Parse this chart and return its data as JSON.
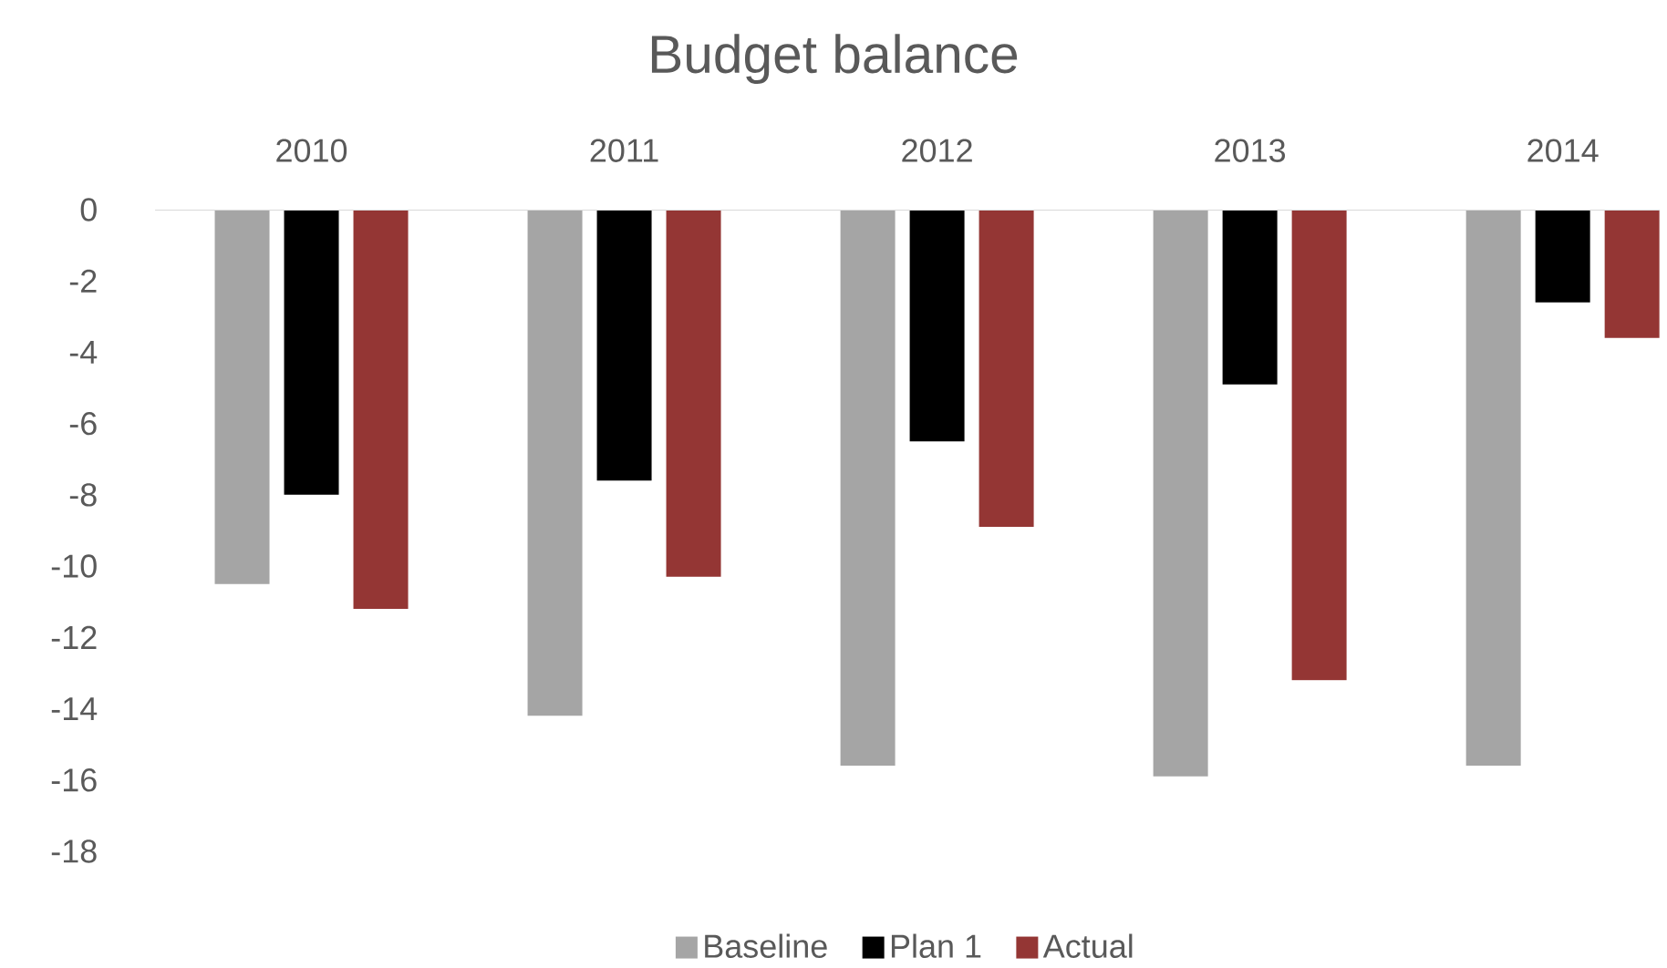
{
  "chart_data": {
    "type": "bar",
    "title": "Budget balance",
    "categories": [
      "2010",
      "2011",
      "2012",
      "2013",
      "2014"
    ],
    "series": [
      {
        "name": "Baseline",
        "color": "#a5a5a5",
        "values": [
          -10.5,
          -14.2,
          -15.6,
          -15.9,
          -15.6
        ]
      },
      {
        "name": "Plan 1",
        "color": "#000000",
        "values": [
          -8.0,
          -7.6,
          -6.5,
          -4.9,
          -2.6
        ]
      },
      {
        "name": "Actual",
        "color": "#943634",
        "values": [
          -11.2,
          -10.3,
          -8.9,
          -13.2,
          -3.6
        ]
      }
    ],
    "ylim": [
      -18,
      0
    ],
    "yticks": [
      0,
      -2,
      -4,
      -6,
      -8,
      -10,
      -12,
      -14,
      -16,
      -18
    ],
    "legend": "bottom"
  }
}
